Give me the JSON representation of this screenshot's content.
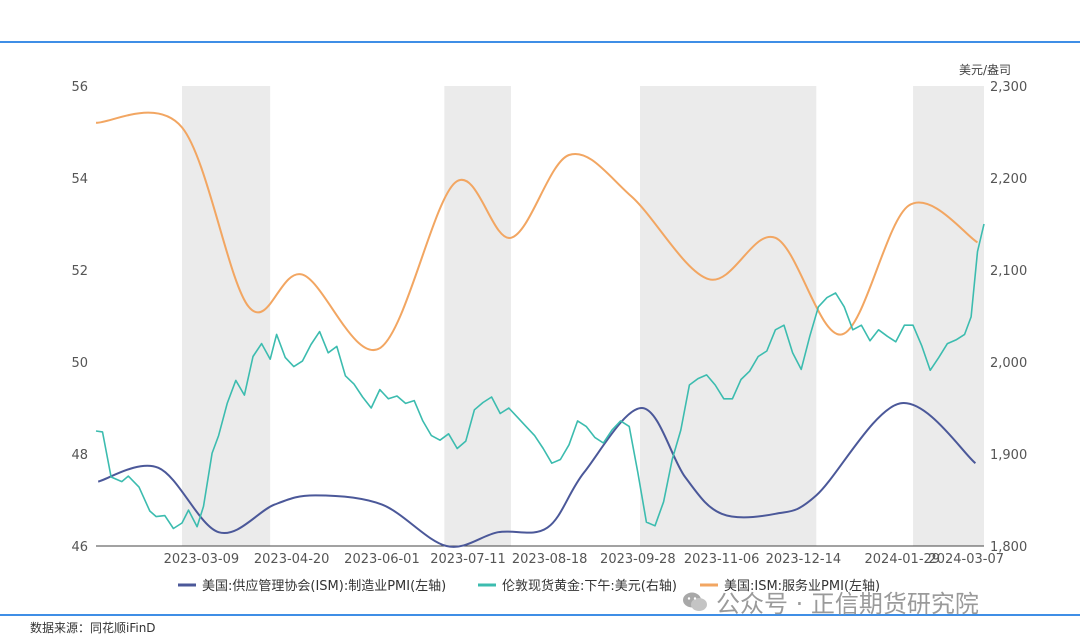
{
  "source": "数据来源：同花顺iFinD",
  "watermark": {
    "text": "公众号 · 正信期货研究院",
    "icon": "wechat-icon"
  },
  "chart_data": {
    "type": "line",
    "title": "",
    "left_axis": {
      "min": 46,
      "max": 56,
      "ticks": [
        46,
        48,
        50,
        52,
        54,
        56
      ]
    },
    "right_axis": {
      "unit": "美元/盎司",
      "min": 1800,
      "max": 2300,
      "tick_labels": [
        "1,800",
        "1,900",
        "2,000",
        "2,100",
        "2,200",
        "2,300"
      ]
    },
    "x_range": [
      "2023-01-19",
      "2024-03-07"
    ],
    "x_tick_labels": [
      "2023-03-09",
      "2023-04-20",
      "2023-06-01",
      "2023-07-11",
      "2023-08-18",
      "2023-09-28",
      "2023-11-06",
      "2023-12-14",
      "2024-01-29",
      "2024-03-07"
    ],
    "grid": false,
    "legend_position": "bottom",
    "shaded_periods": [
      [
        "2023-02-28",
        "2023-04-10"
      ],
      [
        "2023-06-30",
        "2023-07-31"
      ],
      [
        "2023-09-29",
        "2023-12-20"
      ],
      [
        "2024-02-03",
        "2024-03-07"
      ]
    ],
    "series": [
      {
        "name": "美国:供应管理协会(ISM):制造业PMI(左轴)",
        "axis": "left",
        "color": "#4b5899",
        "x": [
          "2023-01-20",
          "2023-02-17",
          "2023-03-17",
          "2023-04-12",
          "2023-05-01",
          "2023-06-01",
          "2023-07-01",
          "2023-07-25",
          "2023-08-17",
          "2023-09-03",
          "2023-09-30",
          "2023-10-20",
          "2023-11-06",
          "2023-12-01",
          "2023-12-20",
          "2024-01-28",
          "2024-03-03"
        ],
        "values": [
          47.4,
          47.7,
          46.3,
          46.9,
          47.1,
          46.9,
          46.0,
          46.3,
          46.4,
          47.6,
          49.0,
          47.5,
          46.7,
          46.7,
          47.1,
          49.1,
          47.8
        ]
      },
      {
        "name": "伦敦现货黄金:下午:美元(右轴)",
        "axis": "right",
        "color": "#3cbcaf",
        "x": [
          "2023-01-19",
          "2023-01-22",
          "2023-01-26",
          "2023-01-31",
          "2023-02-03",
          "2023-02-08",
          "2023-02-13",
          "2023-02-16",
          "2023-02-20",
          "2023-02-24",
          "2023-02-28",
          "2023-03-03",
          "2023-03-07",
          "2023-03-10",
          "2023-03-14",
          "2023-03-17",
          "2023-03-21",
          "2023-03-25",
          "2023-03-29",
          "2023-04-02",
          "2023-04-06",
          "2023-04-10",
          "2023-04-13",
          "2023-04-17",
          "2023-04-21",
          "2023-04-25",
          "2023-04-29",
          "2023-05-03",
          "2023-05-07",
          "2023-05-11",
          "2023-05-15",
          "2023-05-19",
          "2023-05-23",
          "2023-05-27",
          "2023-05-31",
          "2023-06-04",
          "2023-06-08",
          "2023-06-12",
          "2023-06-16",
          "2023-06-20",
          "2023-06-24",
          "2023-06-28",
          "2023-07-02",
          "2023-07-06",
          "2023-07-10",
          "2023-07-14",
          "2023-07-18",
          "2023-07-22",
          "2023-07-26",
          "2023-07-30",
          "2023-08-03",
          "2023-08-07",
          "2023-08-11",
          "2023-08-15",
          "2023-08-19",
          "2023-08-23",
          "2023-08-27",
          "2023-08-31",
          "2023-09-04",
          "2023-09-08",
          "2023-09-12",
          "2023-09-16",
          "2023-09-20",
          "2023-09-24",
          "2023-09-28",
          "2023-10-02",
          "2023-10-06",
          "2023-10-10",
          "2023-10-14",
          "2023-10-18",
          "2023-10-22",
          "2023-10-26",
          "2023-10-30",
          "2023-11-03",
          "2023-11-07",
          "2023-11-11",
          "2023-11-15",
          "2023-11-19",
          "2023-11-23",
          "2023-11-27",
          "2023-12-01",
          "2023-12-05",
          "2023-12-09",
          "2023-12-13",
          "2023-12-17",
          "2023-12-21",
          "2023-12-25",
          "2023-12-29",
          "2024-01-02",
          "2024-01-06",
          "2024-01-10",
          "2024-01-14",
          "2024-01-18",
          "2024-01-22",
          "2024-01-26",
          "2024-01-30",
          "2024-02-03",
          "2024-02-07",
          "2024-02-11",
          "2024-02-15",
          "2024-02-19",
          "2024-02-23",
          "2024-02-27",
          "2024-03-01",
          "2024-03-04",
          "2024-03-07"
        ],
        "values": [
          1925,
          1924,
          1875,
          1870,
          1876,
          1864,
          1838,
          1832,
          1833,
          1819,
          1825,
          1839,
          1821,
          1843,
          1901,
          1920,
          1955,
          1980,
          1964,
          2006,
          2020,
          2003,
          2030,
          2005,
          1995,
          2001,
          2019,
          2033,
          2010,
          2017,
          1985,
          1976,
          1962,
          1950,
          1970,
          1960,
          1963,
          1955,
          1958,
          1936,
          1920,
          1915,
          1922,
          1906,
          1914,
          1948,
          1956,
          1962,
          1944,
          1950,
          1940,
          1930,
          1920,
          1906,
          1890,
          1894,
          1910,
          1936,
          1930,
          1918,
          1912,
          1926,
          1936,
          1930,
          1880,
          1826,
          1822,
          1848,
          1894,
          1926,
          1975,
          1982,
          1986,
          1975,
          1960,
          1960,
          1981,
          1990,
          2006,
          2012,
          2035,
          2040,
          2010,
          1992,
          2028,
          2060,
          2070,
          2075,
          2060,
          2035,
          2040,
          2023,
          2035,
          2028,
          2022,
          2040,
          2040,
          2018,
          1991,
          2005,
          2020,
          2024,
          2030,
          2049,
          2120,
          2150
        ]
      },
      {
        "name": "美国:ISM:服务业PMI(左轴)",
        "axis": "left",
        "color": "#f2a662",
        "x": [
          "2023-01-19",
          "2023-02-28",
          "2023-03-31",
          "2023-04-25",
          "2023-05-31",
          "2023-07-05",
          "2023-07-31",
          "2023-08-27",
          "2023-09-25",
          "2023-10-31",
          "2023-12-01",
          "2024-01-01",
          "2024-02-01",
          "2024-03-04"
        ],
        "values": [
          55.2,
          55.1,
          51.2,
          51.9,
          50.3,
          53.9,
          52.7,
          54.5,
          53.6,
          51.8,
          52.7,
          50.6,
          53.4,
          52.6
        ]
      }
    ]
  }
}
